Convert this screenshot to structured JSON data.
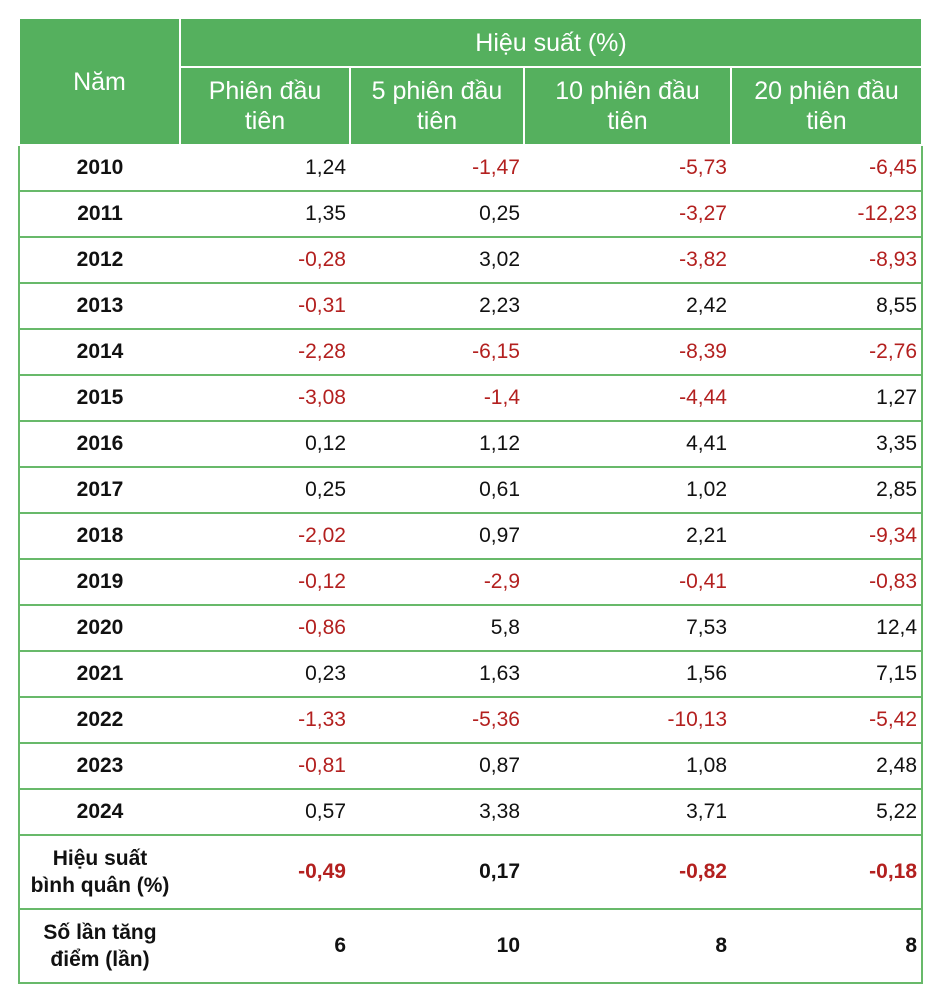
{
  "header": {
    "year_label": "Năm",
    "group_label": "Hiệu suất (%)",
    "columns": [
      {
        "line1": "Phiên đầu",
        "line2": "tiên"
      },
      {
        "line1": "5 phiên đầu",
        "line2": "tiên"
      },
      {
        "line1": "10 phiên đầu",
        "line2": "tiên"
      },
      {
        "line1": "20 phiên đầu",
        "line2": "tiên"
      }
    ]
  },
  "rows": [
    {
      "year": "2010",
      "values": [
        "1,24",
        "-1,47",
        "-5,73",
        "-6,45"
      ]
    },
    {
      "year": "2011",
      "values": [
        "1,35",
        "0,25",
        "-3,27",
        "-12,23"
      ]
    },
    {
      "year": "2012",
      "values": [
        "-0,28",
        "3,02",
        "-3,82",
        "-8,93"
      ]
    },
    {
      "year": "2013",
      "values": [
        "-0,31",
        "2,23",
        "2,42",
        "8,55"
      ]
    },
    {
      "year": "2014",
      "values": [
        "-2,28",
        "-6,15",
        "-8,39",
        "-2,76"
      ]
    },
    {
      "year": "2015",
      "values": [
        "-3,08",
        "-1,4",
        "-4,44",
        "1,27"
      ]
    },
    {
      "year": "2016",
      "values": [
        "0,12",
        "1,12",
        "4,41",
        "3,35"
      ]
    },
    {
      "year": "2017",
      "values": [
        "0,25",
        "0,61",
        "1,02",
        "2,85"
      ]
    },
    {
      "year": "2018",
      "values": [
        "-2,02",
        "0,97",
        "2,21",
        "-9,34"
      ]
    },
    {
      "year": "2019",
      "values": [
        "-0,12",
        "-2,9",
        "-0,41",
        "-0,83"
      ]
    },
    {
      "year": "2020",
      "values": [
        "-0,86",
        "5,8",
        "7,53",
        "12,4"
      ]
    },
    {
      "year": "2021",
      "values": [
        "0,23",
        "1,63",
        "1,56",
        "7,15"
      ]
    },
    {
      "year": "2022",
      "values": [
        "-1,33",
        "-5,36",
        "-10,13",
        "-5,42"
      ]
    },
    {
      "year": "2023",
      "values": [
        "-0,81",
        "0,87",
        "1,08",
        "2,48"
      ]
    },
    {
      "year": "2024",
      "values": [
        "0,57",
        "3,38",
        "3,71",
        "5,22"
      ]
    }
  ],
  "summary": [
    {
      "label_line1": "Hiệu suất",
      "label_line2": "bình quân (%)",
      "values": [
        "-0,49",
        "0,17",
        "-0,82",
        "-0,18"
      ]
    },
    {
      "label_line1": "Số lần tăng",
      "label_line2": "điểm (lần)",
      "values": [
        "6",
        "10",
        "8",
        "8"
      ]
    }
  ],
  "colors": {
    "header_bg": "#55b05e",
    "header_text": "#ffffff",
    "border": "#68b96a",
    "negative": "#b3201f",
    "positive": "#111111"
  },
  "chart_data": {
    "type": "table",
    "title": "Hiệu suất (%)",
    "row_header": "Năm",
    "columns": [
      "Phiên đầu tiên",
      "5 phiên đầu tiên",
      "10 phiên đầu tiên",
      "20 phiên đầu tiên"
    ],
    "series": [
      {
        "name": "Phiên đầu tiên",
        "values": [
          1.24,
          1.35,
          -0.28,
          -0.31,
          -2.28,
          -3.08,
          0.12,
          0.25,
          -2.02,
          -0.12,
          -0.86,
          0.23,
          -1.33,
          -0.81,
          0.57
        ]
      },
      {
        "name": "5 phiên đầu tiên",
        "values": [
          -1.47,
          0.25,
          3.02,
          2.23,
          -6.15,
          -1.4,
          1.12,
          0.61,
          0.97,
          -2.9,
          5.8,
          1.63,
          -5.36,
          0.87,
          3.38
        ]
      },
      {
        "name": "10 phiên đầu tiên",
        "values": [
          -5.73,
          -3.27,
          -3.82,
          2.42,
          -8.39,
          -4.44,
          4.41,
          1.02,
          2.21,
          -0.41,
          7.53,
          1.56,
          -10.13,
          1.08,
          3.71
        ]
      },
      {
        "name": "20 phiên đầu tiên",
        "values": [
          -6.45,
          -12.23,
          -8.93,
          8.55,
          -2.76,
          1.27,
          3.35,
          2.85,
          -9.34,
          -0.83,
          12.4,
          7.15,
          -5.42,
          2.48,
          5.22
        ]
      }
    ],
    "categories": [
      "2010",
      "2011",
      "2012",
      "2013",
      "2014",
      "2015",
      "2016",
      "2017",
      "2018",
      "2019",
      "2020",
      "2021",
      "2022",
      "2023",
      "2024"
    ],
    "average": [
      -0.49,
      0.17,
      -0.82,
      -0.18
    ],
    "up_count": [
      6,
      10,
      8,
      8
    ]
  }
}
